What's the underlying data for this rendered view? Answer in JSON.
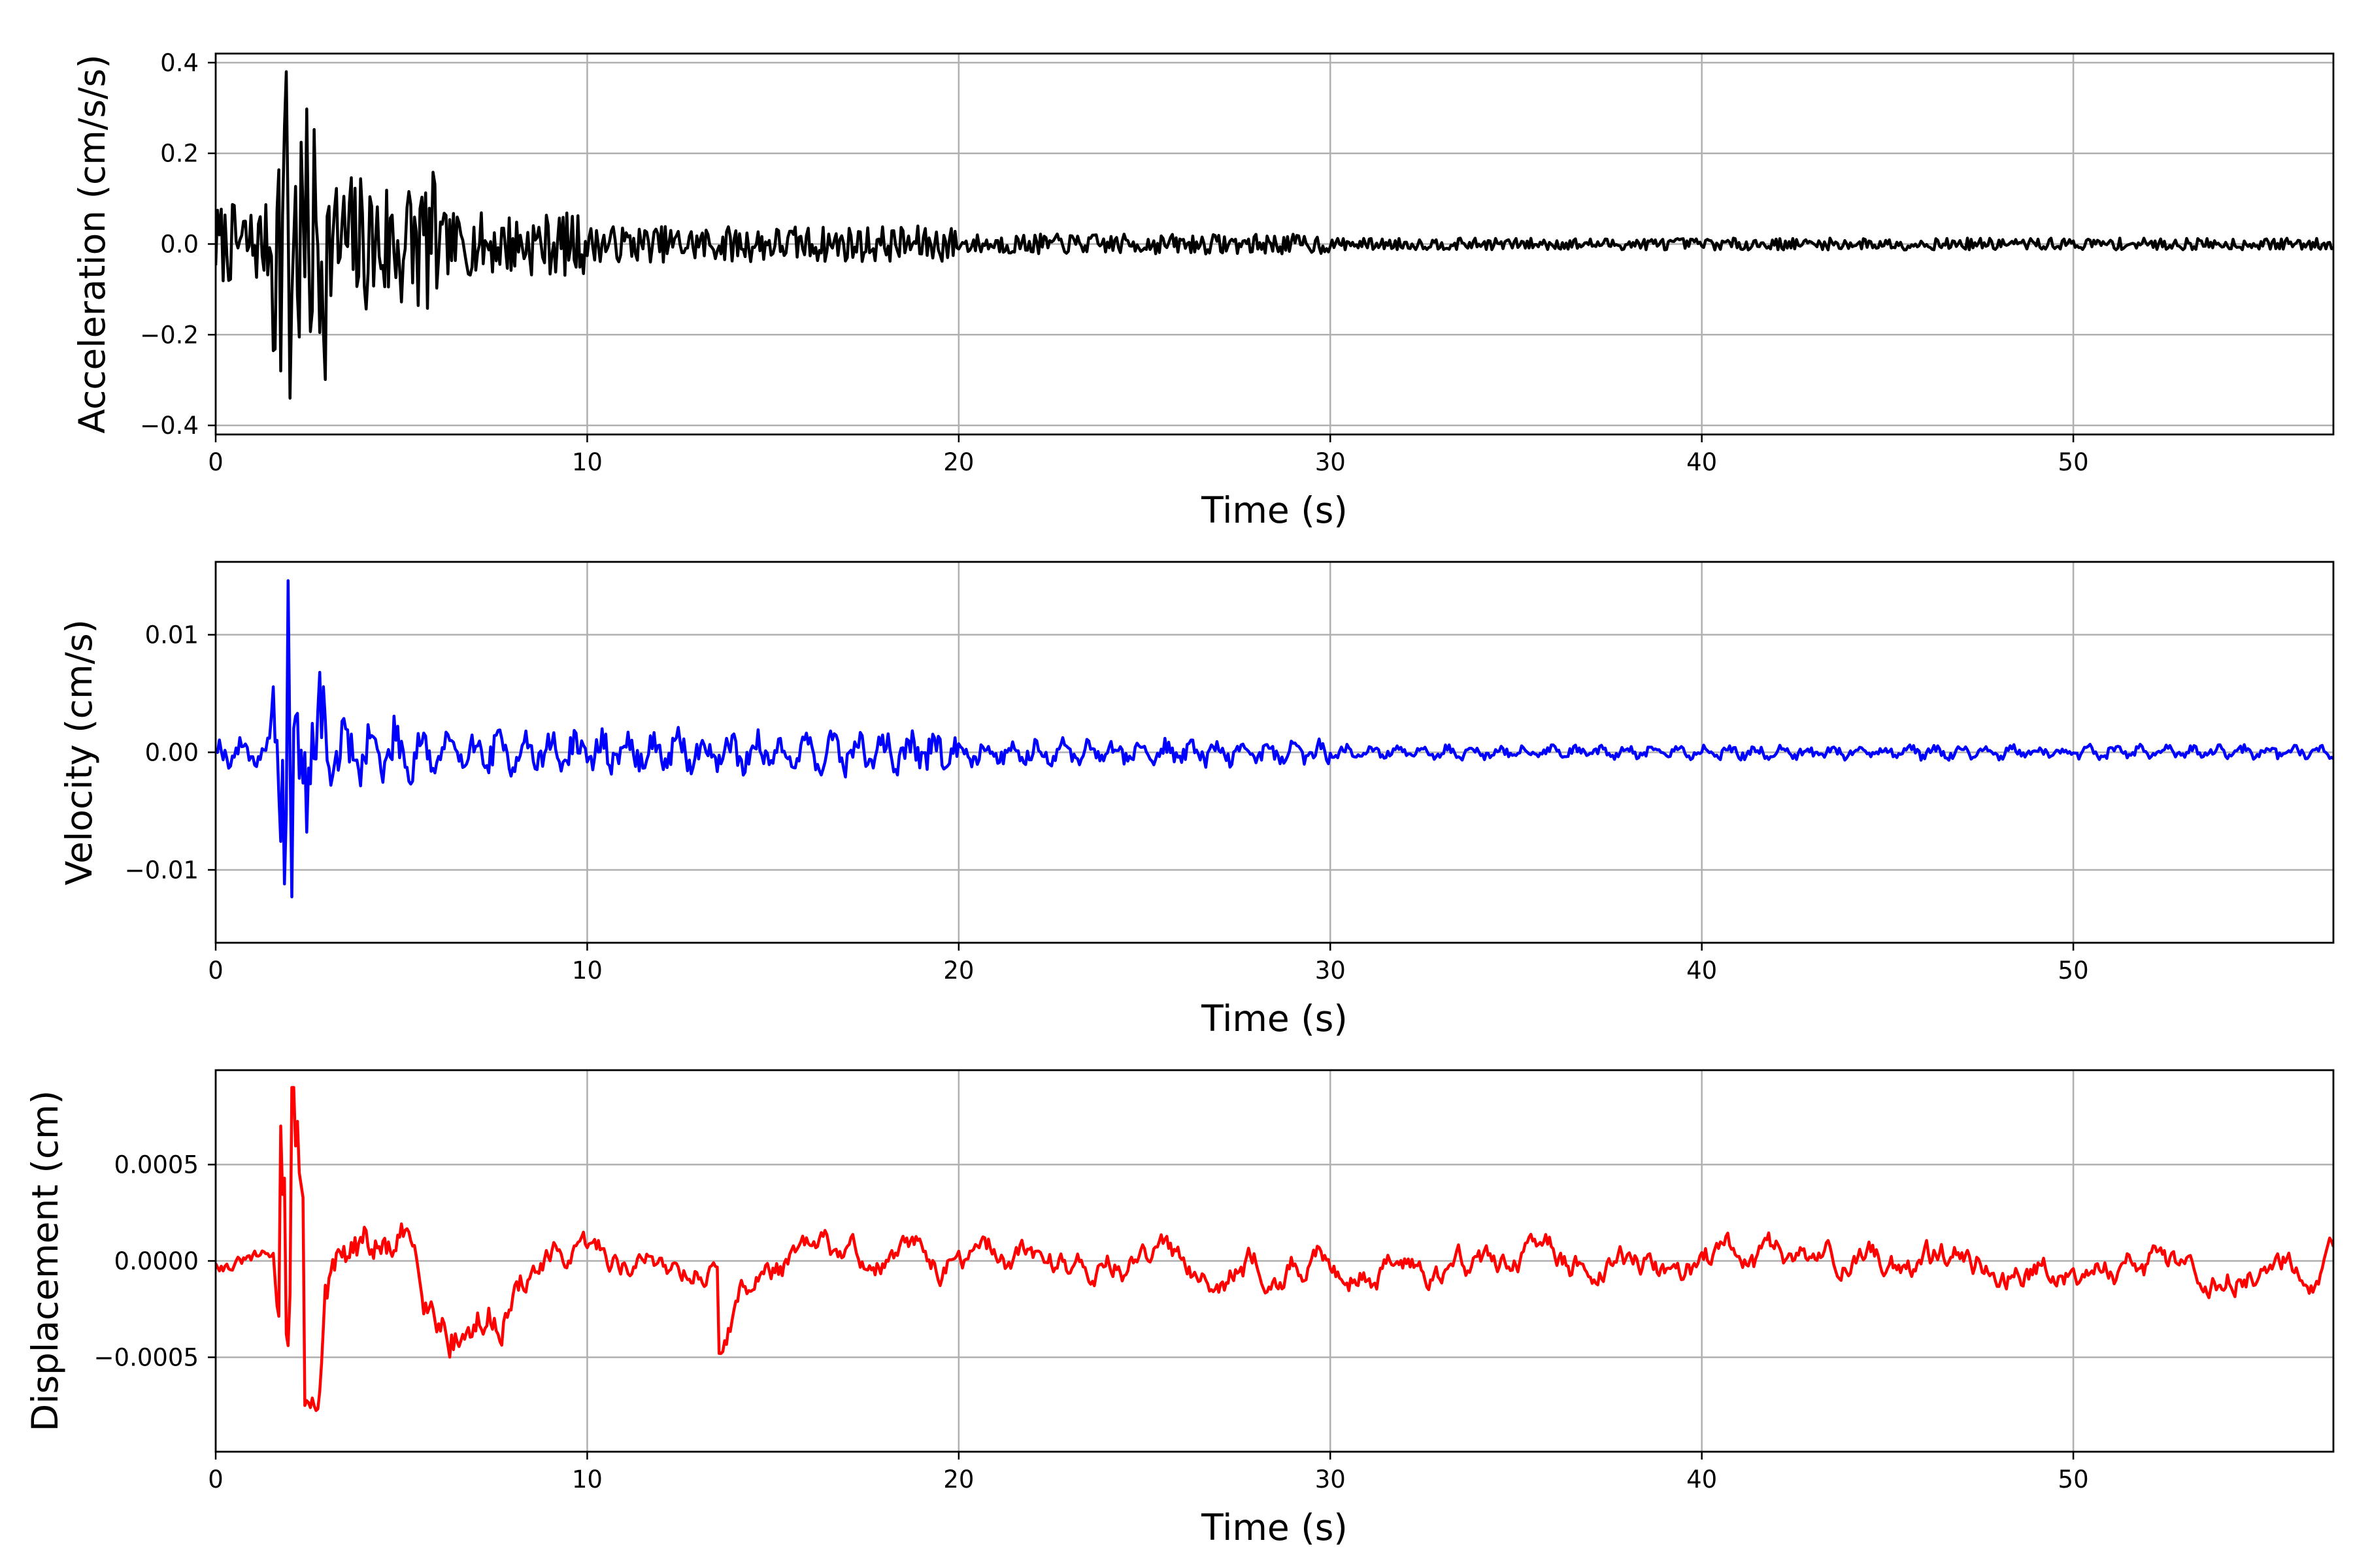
{
  "chart_data": [
    {
      "type": "line",
      "title": "",
      "xlabel": "Time (s)",
      "ylabel": "Acceleration (cm/s/s)",
      "xlim": [
        0,
        57
      ],
      "ylim": [
        -0.42,
        0.42
      ],
      "xticks": [
        0,
        10,
        20,
        30,
        40,
        50
      ],
      "xtick_labels": [
        "0",
        "10",
        "20",
        "30",
        "40",
        "50"
      ],
      "yticks": [
        -0.4,
        -0.2,
        0.0,
        0.2,
        0.4
      ],
      "ytick_labels": [
        "−0.4",
        "−0.2",
        "0.0",
        "0.2",
        "0.4"
      ],
      "grid": true,
      "series": [
        {
          "color": "#000000",
          "x_start": 0,
          "dt": 0.05,
          "values": []
        }
      ]
    },
    {
      "type": "line",
      "title": "",
      "xlabel": "Time (s)",
      "ylabel": "Velocity (cm/s)",
      "xlim": [
        0,
        57
      ],
      "ylim": [
        -0.0162,
        0.0162
      ],
      "xticks": [
        0,
        10,
        20,
        30,
        40,
        50
      ],
      "xtick_labels": [
        "0",
        "10",
        "20",
        "30",
        "40",
        "50"
      ],
      "yticks": [
        -0.01,
        0.0,
        0.01
      ],
      "ytick_labels": [
        "−0.01",
        "0.00",
        "0.01"
      ],
      "grid": true,
      "series": [
        {
          "color": "#0000ff",
          "x_start": 0,
          "dt": 0.05,
          "values": []
        }
      ]
    },
    {
      "type": "line",
      "title": "",
      "xlabel": "Time (s)",
      "ylabel": "Displacement (cm)",
      "xlim": [
        0,
        57
      ],
      "ylim": [
        -0.00099,
        0.00099
      ],
      "xticks": [
        0,
        10,
        20,
        30,
        40,
        50
      ],
      "xtick_labels": [
        "0",
        "10",
        "20",
        "30",
        "40",
        "50"
      ],
      "yticks": [
        -0.0005,
        0.0,
        0.0005
      ],
      "ytick_labels": [
        "−0.0005",
        "0.0000",
        "0.0005"
      ],
      "grid": true,
      "series": [
        {
          "color": "#ff0000",
          "x_start": 0,
          "dt": 0.05,
          "values": []
        }
      ]
    }
  ]
}
